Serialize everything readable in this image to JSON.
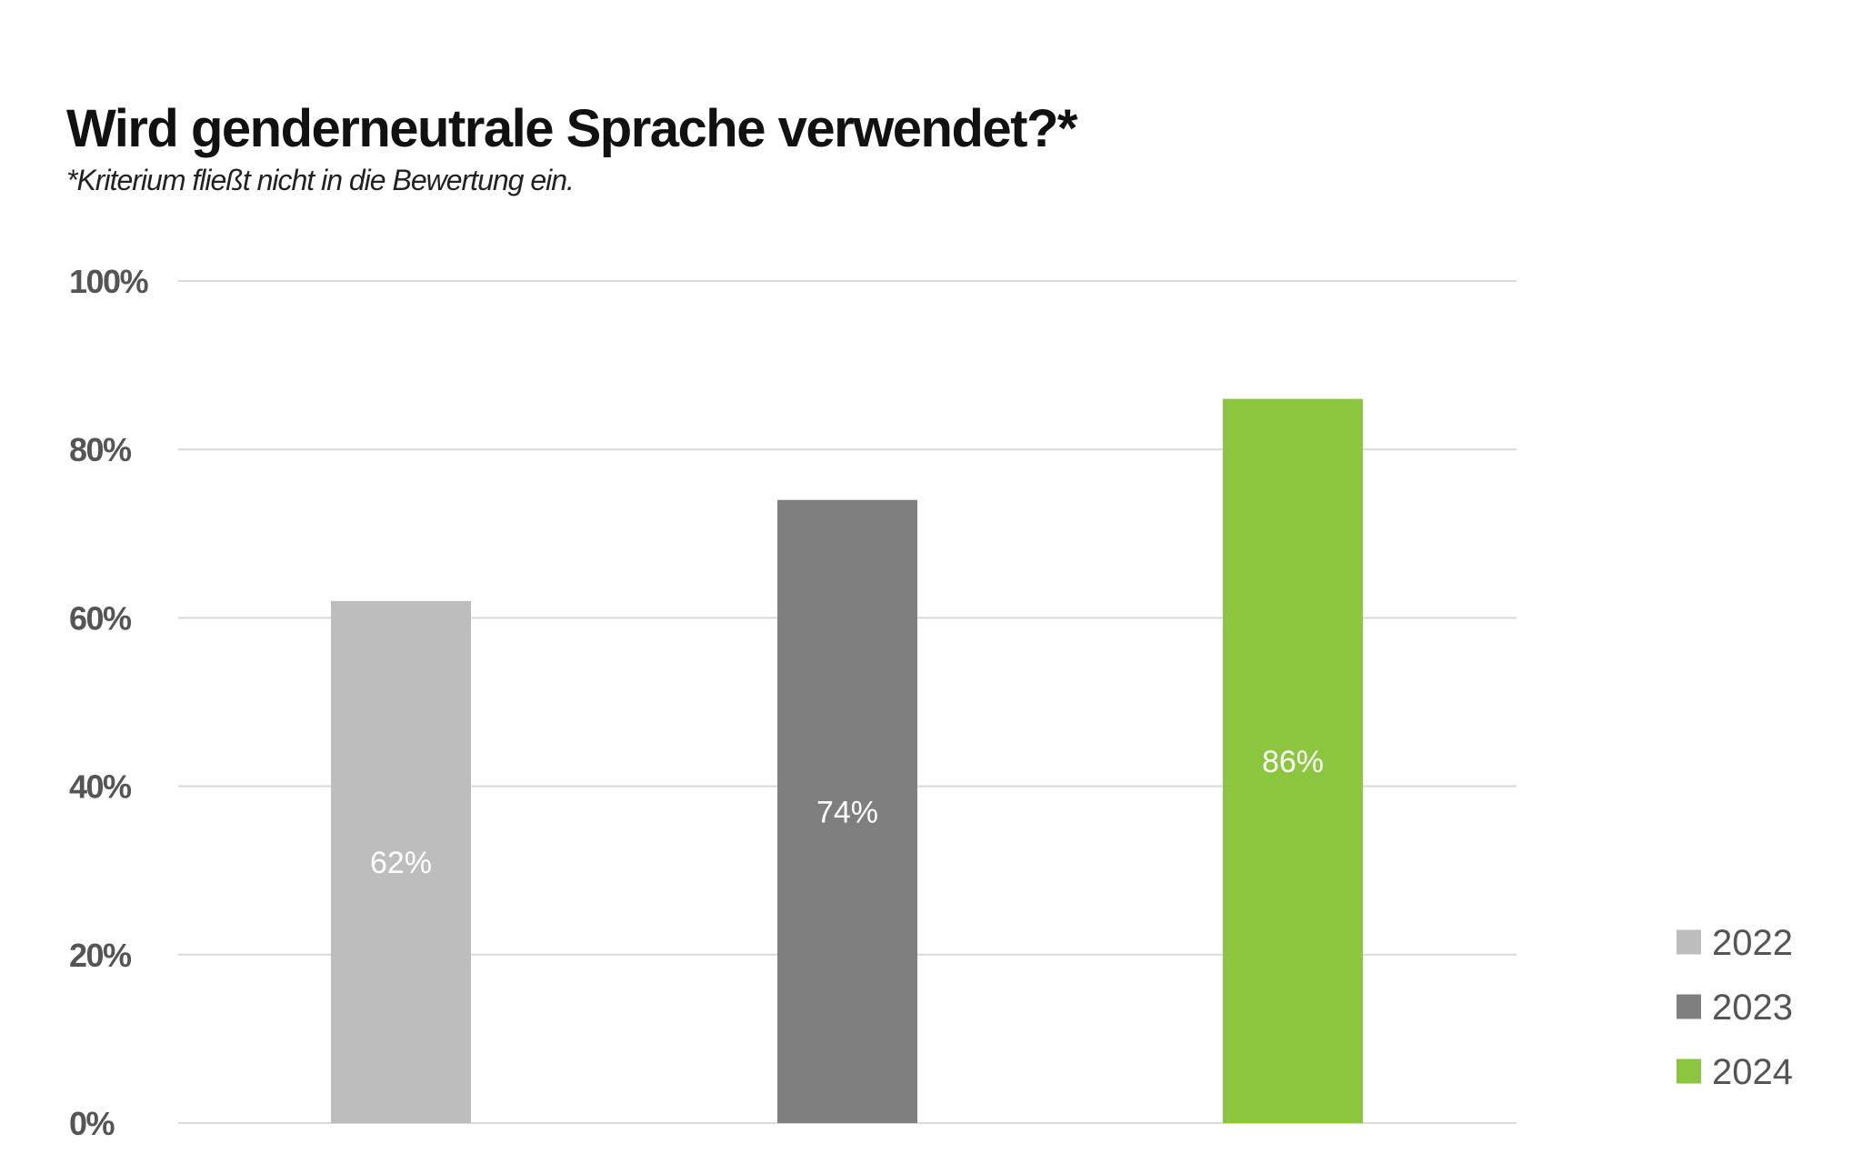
{
  "chart_data": {
    "type": "bar",
    "title": "Wird genderneutrale Sprache verwendet?*",
    "subtitle": "*Kriterium fließt nicht in die Bewertung ein.",
    "xlabel": "",
    "ylabel": "",
    "ylim": [
      0,
      100
    ],
    "yticks": [
      {
        "value": 0,
        "label": "0%"
      },
      {
        "value": 20,
        "label": "20%"
      },
      {
        "value": 40,
        "label": "40%"
      },
      {
        "value": 60,
        "label": "60%"
      },
      {
        "value": 80,
        "label": "80%"
      },
      {
        "value": 100,
        "label": "100%"
      }
    ],
    "grid": true,
    "legend_position": "bottom-right",
    "series": [
      {
        "name": "2022",
        "value": 62,
        "label": "62%",
        "color": "#bdbdbd"
      },
      {
        "name": "2023",
        "value": 74,
        "label": "74%",
        "color": "#7f7f7f"
      },
      {
        "name": "2024",
        "value": 86,
        "label": "86%",
        "color": "#8cc63f"
      }
    ]
  },
  "colors": {
    "grid": "#d9d9d9",
    "axis_text": "#555555",
    "bar_label": "#ffffff"
  }
}
